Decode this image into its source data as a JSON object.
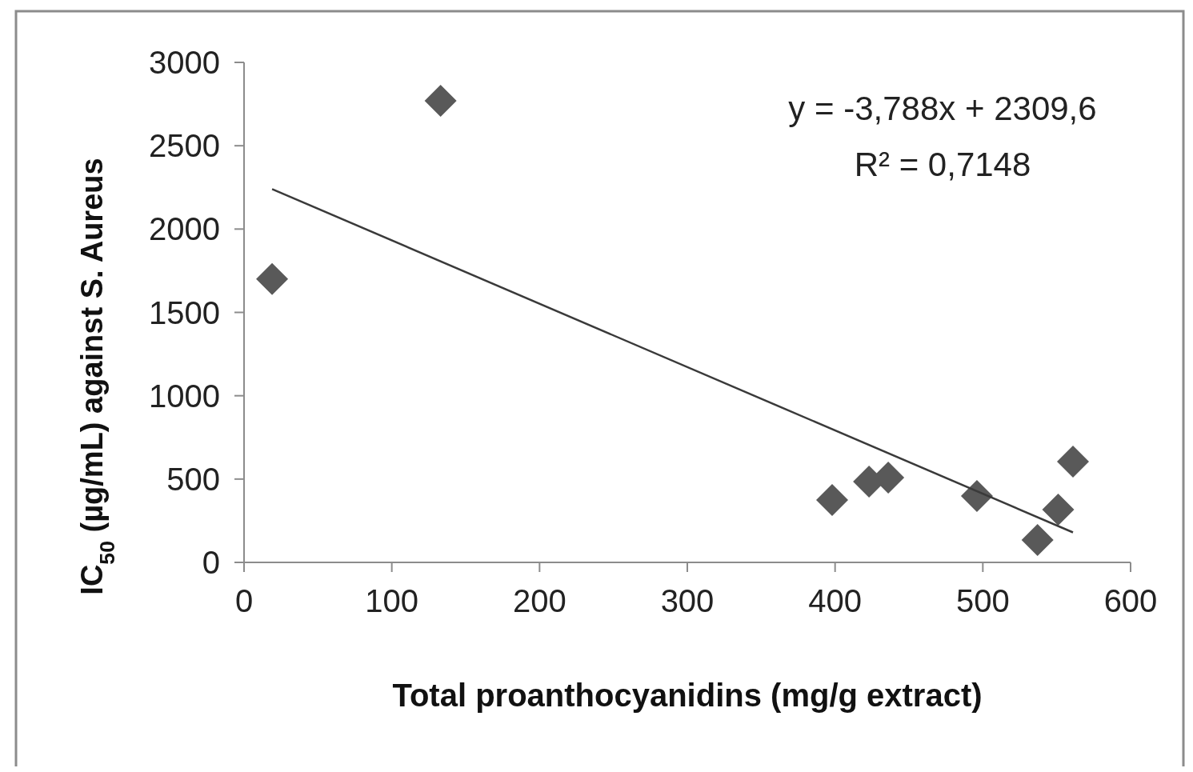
{
  "chart_data": {
    "type": "scatter",
    "xlabel": "Total proanthocyanidins (mg/g extract)",
    "ylabel": "IC$_{50}$ (µg/mL)  against S. Aureus",
    "annotations": [
      "y = -3,788x + 2309,6",
      "R² = 0,7148"
    ],
    "xlim": [
      0,
      600
    ],
    "xticks": [
      0,
      100,
      200,
      300,
      400,
      500,
      600
    ],
    "ylim": [
      0,
      3000
    ],
    "yticks": [
      0,
      500,
      1000,
      1500,
      2000,
      2500,
      3000
    ],
    "series": [
      {
        "marker": "diamond",
        "color": "#595959",
        "x": [
          19,
          133,
          398,
          423,
          436,
          496,
          537,
          551,
          561
        ],
        "values": [
          1700,
          2770,
          374,
          485,
          509,
          398,
          134,
          317,
          605
        ]
      },
      {
        "type": "line",
        "color": "#3a3a3a",
        "x": [
          19,
          561
        ],
        "values": [
          2240,
          180
        ]
      }
    ]
  }
}
